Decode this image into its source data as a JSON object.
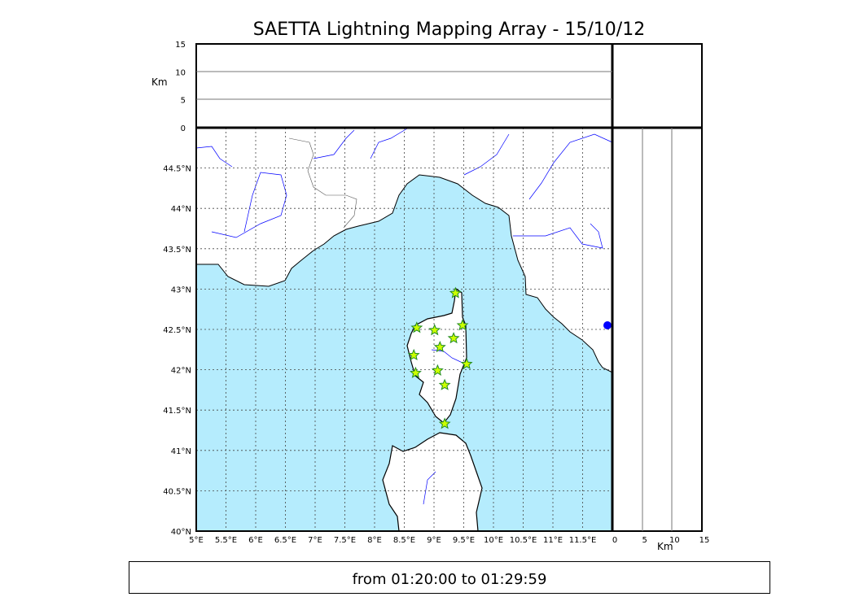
{
  "title": "SAETTA Lightning Mapping Array - 15/10/12",
  "footer": "from 01:20:00 to 01:29:59",
  "colors": {
    "sea": "#b5ecfd",
    "land": "#ffffff",
    "river": "#0000ff",
    "star_fill": "#ccff00",
    "star_edge": "#228b22"
  },
  "chart_data": {
    "type": "scatter",
    "map": {
      "lon_range": [
        5,
        12
      ],
      "lat_range": [
        40,
        45
      ],
      "lon_ticks": [
        "5°E",
        "5.5°E",
        "6°E",
        "6.5°E",
        "7°E",
        "7.5°E",
        "8°E",
        "8.5°E",
        "9°E",
        "9.5°E",
        "10°E",
        "10.5°E",
        "11°E",
        "11.5°E"
      ],
      "lat_ticks": [
        "40°N",
        "40.5°N",
        "41°N",
        "41.5°N",
        "42°N",
        "42.5°N",
        "43°N",
        "43.5°N",
        "44°N",
        "44.5°N"
      ],
      "grid": true
    },
    "altitude_panel": {
      "ylabel": "Km",
      "ticks": [
        "0",
        "5",
        "10",
        "15"
      ],
      "range": [
        0,
        15
      ]
    },
    "side_panel": {
      "xlabel": "Km",
      "ticks": [
        "0",
        "5",
        "10",
        "15"
      ],
      "range": [
        0,
        15
      ]
    },
    "stations": [
      {
        "lon": 9.36,
        "lat": 42.95
      },
      {
        "lon": 8.71,
        "lat": 42.52
      },
      {
        "lon": 9.01,
        "lat": 42.49
      },
      {
        "lon": 9.48,
        "lat": 42.55
      },
      {
        "lon": 9.33,
        "lat": 42.39
      },
      {
        "lon": 9.1,
        "lat": 42.28
      },
      {
        "lon": 8.66,
        "lat": 42.18
      },
      {
        "lon": 9.55,
        "lat": 42.07
      },
      {
        "lon": 9.06,
        "lat": 41.99
      },
      {
        "lon": 8.69,
        "lat": 41.96
      },
      {
        "lon": 9.18,
        "lat": 41.81
      },
      {
        "lon": 9.18,
        "lat": 41.33
      }
    ],
    "events": [
      {
        "lon": 11.93,
        "lat": 42.56
      }
    ]
  }
}
